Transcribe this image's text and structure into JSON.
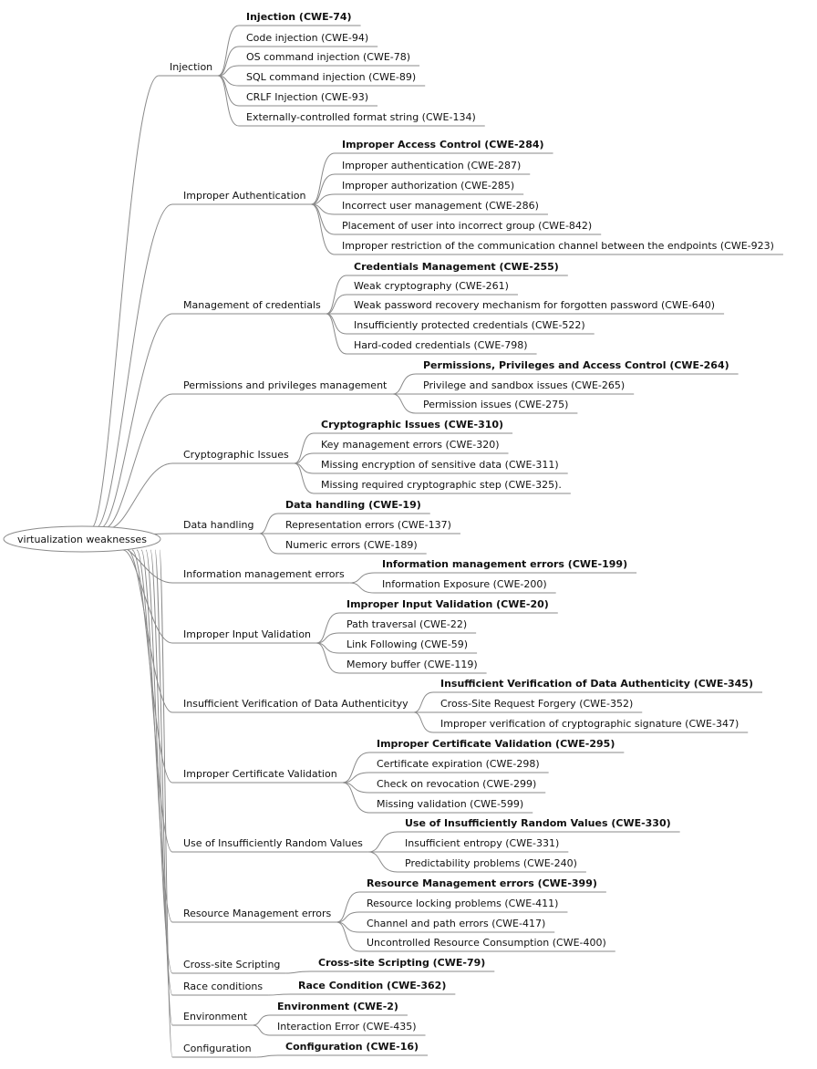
{
  "root": {
    "label": "virtualization weaknesses"
  },
  "colors": {
    "line": "#8a8a8a",
    "text": "#111111",
    "background": "#ffffff"
  },
  "categories": [
    {
      "label": "Injection",
      "children": [
        "Injection (CWE-74)",
        "Code injection  (CWE-94)",
        "OS command injection (CWE-78)",
        "SQL command injection (CWE-89)",
        "CRLF Injection (CWE-93)",
        "Externally-controlled format string (CWE-134)"
      ]
    },
    {
      "label": "Improper Authentication",
      "children": [
        "Improper Access Control (CWE-284)",
        "Improper authentication (CWE-287)",
        "Improper authorization (CWE-285)",
        "Incorrect user management (CWE-286)",
        "Placement of user into incorrect group (CWE-842)",
        "Improper restriction of the communication channel between the endpoints (CWE-923)"
      ]
    },
    {
      "label": "Management of credentials",
      "children": [
        "Credentials Management (CWE-255)",
        "Weak cryptography (CWE-261)",
        "Weak password recovery mechanism for forgotten password (CWE-640)",
        "Insufficiently protected credentials (CWE-522)",
        "Hard-coded credentials (CWE-798)"
      ]
    },
    {
      "label": "Permissions and privileges management",
      "children": [
        "Permissions, Privileges and Access Control (CWE-264)",
        "Privilege and sandbox issues (CWE-265)",
        "Permission issues (CWE-275)"
      ]
    },
    {
      "label": "Cryptographic Issues",
      "children": [
        "Cryptographic Issues (CWE-310)",
        "Key management errors (CWE-320)",
        "Missing encryption of sensitive data (CWE-311)",
        "Missing required cryptographic step (CWE-325)."
      ]
    },
    {
      "label": "Data handling",
      "children": [
        "Data handling (CWE-19)",
        "Representation errors (CWE-137)",
        "Numeric errors (CWE-189)"
      ]
    },
    {
      "label": "Information management errors",
      "children": [
        "Information management errors (CWE-199)",
        "Information Exposure (CWE-200)"
      ]
    },
    {
      "label": "Improper Input Validation",
      "children": [
        "Improper Input Validation (CWE-20)",
        "Path traversal (CWE-22)",
        "Link Following (CWE-59)",
        "Memory buffer (CWE-119)"
      ]
    },
    {
      "label": "Insufficient Verification of Data Authenticityy",
      "children": [
        "Insufficient Verification of Data Authenticity (CWE-345)",
        "Cross-Site Request Forgery (CWE-352)",
        "Improper verification of cryptographic signature (CWE-347)"
      ]
    },
    {
      "label": "Improper Certificate Validation",
      "children": [
        "Improper Certificate Validation (CWE-295)",
        "Certificate expiration (CWE-298)",
        "Check on revocation (CWE-299)",
        "Missing validation (CWE-599)"
      ]
    },
    {
      "label": "Use of Insufficiently Random Values",
      "children": [
        "Use of Insufficiently Random Values (CWE-330)",
        "Insufficient entropy (CWE-331)",
        "Predictability problems (CWE-240)"
      ]
    },
    {
      "label": "Resource Management errors",
      "children": [
        "Resource Management errors (CWE-399)",
        "Resource locking problems (CWE-411)",
        "Channel and path errors (CWE-417)",
        "Uncontrolled Resource Consumption (CWE-400)"
      ]
    },
    {
      "label": "Cross-site Scripting",
      "children": [
        "Cross-site Scripting (CWE-79)"
      ]
    },
    {
      "label": "Race conditions",
      "children": [
        "Race Condition (CWE-362)"
      ]
    },
    {
      "label": "Environment",
      "children": [
        "Environment (CWE-2)",
        "Interaction Error (CWE-435)"
      ]
    },
    {
      "label": "Configuration",
      "children": [
        "Configuration (CWE-16)"
      ]
    }
  ]
}
